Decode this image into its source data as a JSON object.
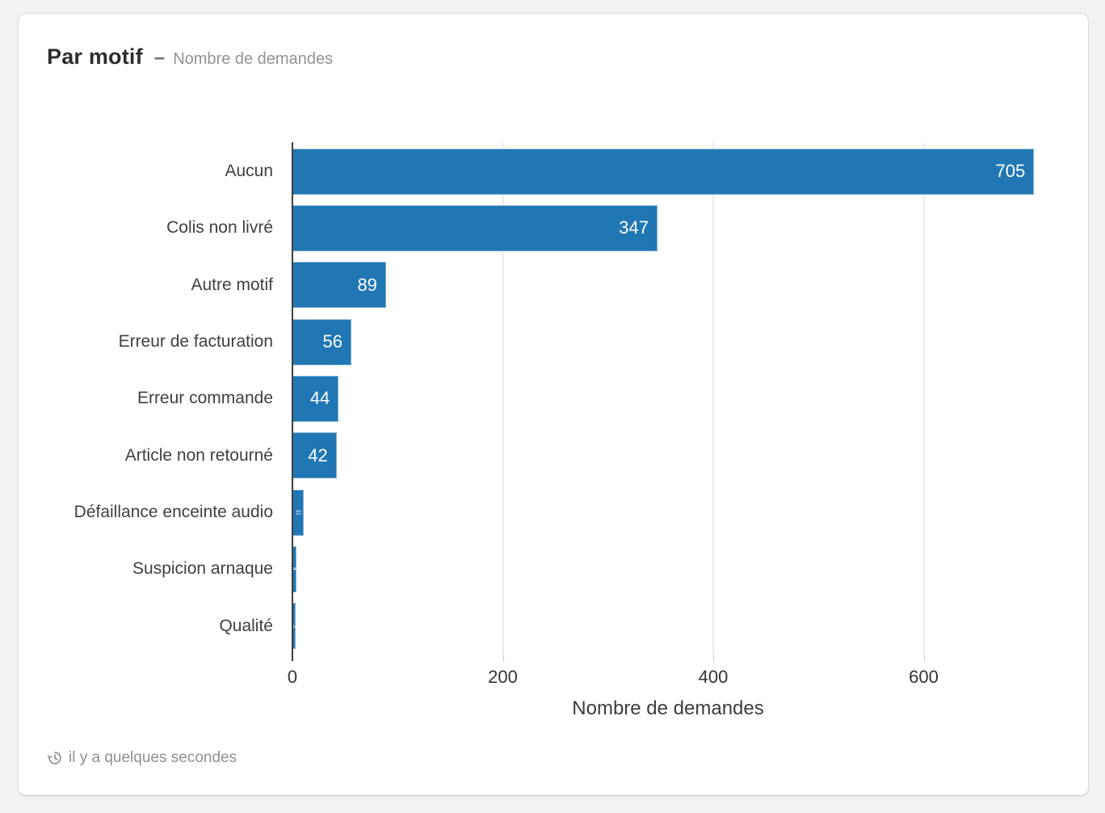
{
  "card": {
    "title": "Par motif",
    "separator": "–",
    "subtitle": "Nombre de demandes",
    "footer": {
      "icon": "history-clock-icon",
      "text": "il y a quelques secondes"
    }
  },
  "chart_data": {
    "type": "bar",
    "orientation": "horizontal",
    "title": "Par motif – Nombre de demandes",
    "categories": [
      "Aucun",
      "Colis non livré",
      "Autre motif",
      "Erreur de facturation",
      "Erreur commande",
      "Article non retourné",
      "Défaillance enceinte audio",
      "Suspicion arnaque",
      "Qualité"
    ],
    "values": [
      705,
      347,
      89,
      56,
      44,
      42,
      11,
      4,
      3
    ],
    "xlabel": "Nombre de demandes",
    "ylabel": "",
    "x_ticks": [
      0,
      200,
      400,
      600
    ],
    "xlim": [
      0,
      714
    ],
    "grid": true,
    "legend": false,
    "bar_color": "#2177b4",
    "bar_border_color": "#7fb0d4",
    "value_label_color": "#ffffff"
  }
}
